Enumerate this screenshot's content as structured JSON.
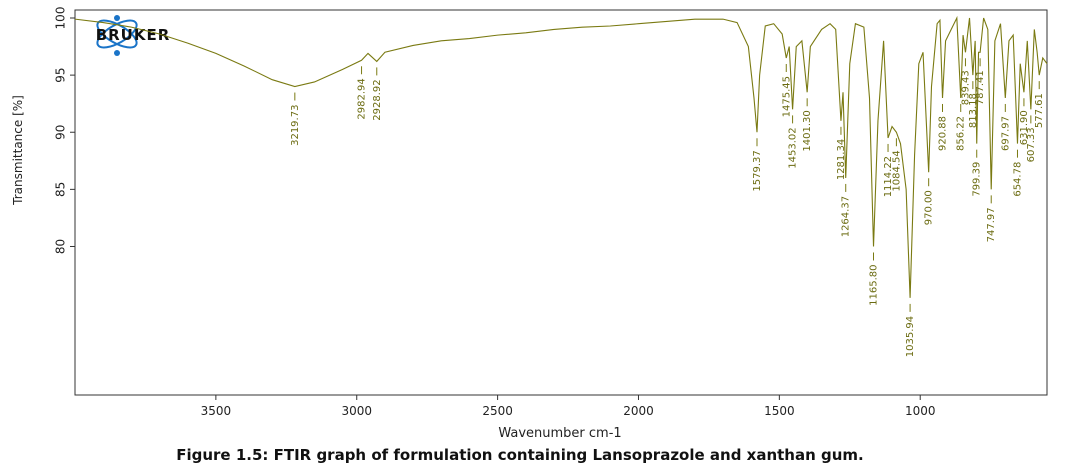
{
  "logo_text": "BRUKER",
  "caption": "Figure 1.5: FTIR graph of formulation containing Lansoprazole and xanthan gum.",
  "chart_data": {
    "type": "line",
    "x_label": "Wavenumber cm-1",
    "y_label": "Transmittance [%]",
    "color": "#7a7a12",
    "xlim": [
      4000,
      550
    ],
    "ylim": [
      67,
      100.7
    ],
    "xticks": [
      3500,
      3000,
      2500,
      2000,
      1500,
      1000
    ],
    "yticks": [
      100,
      95,
      90,
      85,
      80
    ],
    "x": [
      4000,
      3900,
      3800,
      3700,
      3600,
      3500,
      3400,
      3300,
      3219.73,
      3150,
      3050,
      2982.94,
      2960,
      2928.92,
      2900,
      2800,
      2700,
      2600,
      2500,
      2400,
      2300,
      2200,
      2100,
      2000,
      1900,
      1800,
      1700,
      1650,
      1610,
      1590,
      1579.37,
      1570,
      1550,
      1520,
      1490,
      1475.45,
      1465,
      1453.02,
      1440,
      1420,
      1401.3,
      1390,
      1350,
      1320,
      1300,
      1281.34,
      1274,
      1264.37,
      1250,
      1230,
      1200,
      1180,
      1165.8,
      1150,
      1130,
      1114.22,
      1100,
      1084.54,
      1070,
      1050,
      1035.94,
      1020,
      1005,
      990,
      970,
      960,
      940,
      930,
      920.88,
      910,
      890,
      870,
      856.22,
      848,
      839.43,
      825,
      813.18,
      805,
      799.39,
      793,
      787.41,
      775,
      760,
      747.97,
      735,
      715,
      697.97,
      685,
      670,
      654.78,
      645,
      631.9,
      620,
      607.33,
      595,
      585,
      577.61,
      565,
      550
    ],
    "values": [
      99.9,
      99.6,
      99.2,
      98.6,
      97.8,
      96.9,
      95.8,
      94.6,
      94.0,
      94.4,
      95.5,
      96.3,
      96.9,
      96.2,
      97.0,
      97.6,
      98.0,
      98.2,
      98.5,
      98.7,
      99.0,
      99.2,
      99.3,
      99.5,
      99.7,
      99.9,
      99.9,
      99.6,
      97.5,
      93,
      90,
      95,
      99.3,
      99.5,
      98.6,
      96.5,
      97.5,
      92,
      97.5,
      98,
      93.5,
      97.5,
      99,
      99.5,
      99,
      91,
      93.5,
      86,
      96,
      99.5,
      99.2,
      93,
      80,
      91,
      98,
      89.5,
      90.5,
      90,
      89,
      85,
      75.5,
      88,
      96,
      97,
      86.5,
      94,
      99.5,
      99.8,
      93,
      98,
      99,
      100,
      93,
      98.5,
      97,
      100,
      95,
      98,
      89,
      97,
      97,
      100,
      99,
      85,
      98,
      99.5,
      93,
      98,
      98.5,
      89,
      96,
      93.5,
      98,
      92,
      99,
      97,
      95,
      96.5,
      96
    ],
    "peaks": [
      {
        "x": 3219.73,
        "label": "3219.73",
        "y": 94.0
      },
      {
        "x": 2982.94,
        "label": "2982.94",
        "y": 96.3
      },
      {
        "x": 2928.92,
        "label": "2928.92",
        "y": 96.2
      },
      {
        "x": 1579.37,
        "label": "1579.37",
        "y": 90
      },
      {
        "x": 1475.45,
        "label": "1475.45",
        "y": 96.5
      },
      {
        "x": 1453.02,
        "label": "1453.02",
        "y": 92
      },
      {
        "x": 1401.3,
        "label": "1401.30",
        "y": 93.5
      },
      {
        "x": 1281.34,
        "label": "1281.34",
        "y": 91
      },
      {
        "x": 1264.37,
        "label": "1264.37",
        "y": 86
      },
      {
        "x": 1165.8,
        "label": "1165.80",
        "y": 80
      },
      {
        "x": 1114.22,
        "label": "1114.22",
        "y": 89.5
      },
      {
        "x": 1084.54,
        "label": "1084.54",
        "y": 90
      },
      {
        "x": 1035.94,
        "label": "1035.94",
        "y": 75.5
      },
      {
        "x": 970,
        "label": "970.00",
        "y": 86.5
      },
      {
        "x": 920.88,
        "label": "920.88",
        "y": 93
      },
      {
        "x": 856.22,
        "label": "856.22",
        "y": 93
      },
      {
        "x": 839.43,
        "label": "839.43",
        "y": 97
      },
      {
        "x": 813.18,
        "label": "813.18",
        "y": 95
      },
      {
        "x": 799.39,
        "label": "799.39",
        "y": 89
      },
      {
        "x": 787.41,
        "label": "787.41",
        "y": 97
      },
      {
        "x": 747.97,
        "label": "747.97",
        "y": 85
      },
      {
        "x": 697.97,
        "label": "697.97",
        "y": 93
      },
      {
        "x": 654.78,
        "label": "654.78",
        "y": 89
      },
      {
        "x": 631.9,
        "label": "631.90",
        "y": 93.5
      },
      {
        "x": 607.33,
        "label": "607.33",
        "y": 92
      },
      {
        "x": 577.61,
        "label": "577.61",
        "y": 95
      }
    ]
  }
}
